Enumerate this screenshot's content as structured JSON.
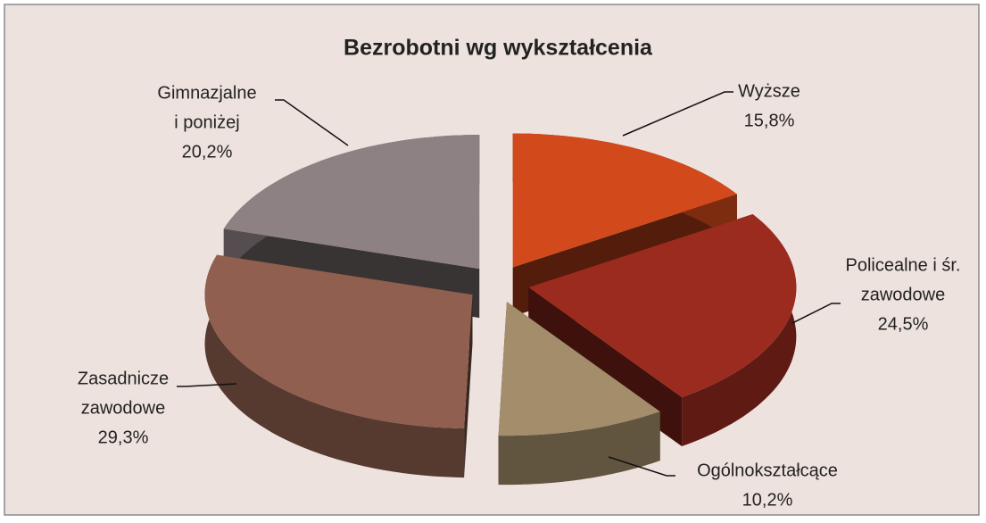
{
  "chart_data": {
    "type": "pie3d",
    "title": "Bezrobotni wg wykształcenia",
    "categories": [
      [
        "Wyższe"
      ],
      [
        "Policealne i śr.",
        "zawodowe"
      ],
      [
        "Ogólnokształcące"
      ],
      [
        "Zasadnicze",
        "zawodowe"
      ],
      [
        "Gimnazjalne",
        "i poniżej"
      ]
    ],
    "values": [
      15.8,
      24.5,
      10.2,
      29.3,
      20.2
    ],
    "value_labels": [
      "15,8%",
      "24,5%",
      "10,2%",
      "29,3%",
      "20,2%"
    ],
    "colors": [
      "#d2491b",
      "#9c2b1f",
      "#a38d6b",
      "#905f4f",
      "#8e8183"
    ]
  }
}
